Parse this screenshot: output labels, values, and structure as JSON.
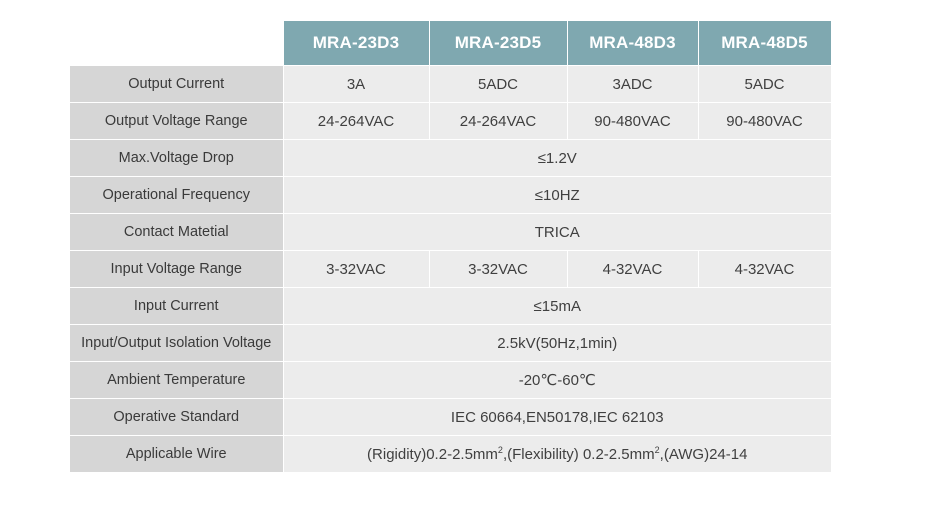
{
  "models": [
    "MRA-23D3",
    "MRA-23D5",
    "MRA-48D3",
    "MRA-48D5"
  ],
  "rows": {
    "output_current": {
      "label": "Output Current",
      "values": [
        "3A",
        "5ADC",
        "3ADC",
        "5ADC"
      ]
    },
    "output_voltage_range": {
      "label": "Output Voltage Range",
      "values": [
        "24-264VAC",
        "24-264VAC",
        "90-480VAC",
        "90-480VAC"
      ]
    },
    "max_voltage_drop": {
      "label": "Max.Voltage Drop",
      "value": "≤1.2V"
    },
    "operational_frequency": {
      "label": "Operational Frequency",
      "value": "≤10HZ"
    },
    "contact_material": {
      "label": "Contact Matetial",
      "value": "TRICA"
    },
    "input_voltage_range": {
      "label": "Input Voltage Range",
      "values": [
        "3-32VAC",
        "3-32VAC",
        "4-32VAC",
        "4-32VAC"
      ]
    },
    "input_current": {
      "label": "Input Current",
      "value": "≤15mA"
    },
    "isolation_voltage": {
      "label": "Input/Output Isolation Voltage",
      "value": "2.5kV(50Hz,1min)"
    },
    "ambient_temperature": {
      "label": "Ambient Temperature",
      "value": "-20℃-60℃"
    },
    "operative_standard": {
      "label": "Operative Standard",
      "value": "IEC 60664,EN50178,IEC 62103"
    },
    "applicable_wire": {
      "label": "Applicable Wire",
      "part1": "(Rigidity)0.2-2.5mm",
      "sup1": "2",
      "part2": ",(Flexibility) 0.2-2.5mm",
      "sup2": "2",
      "part3": ",(AWG)24-14"
    }
  }
}
